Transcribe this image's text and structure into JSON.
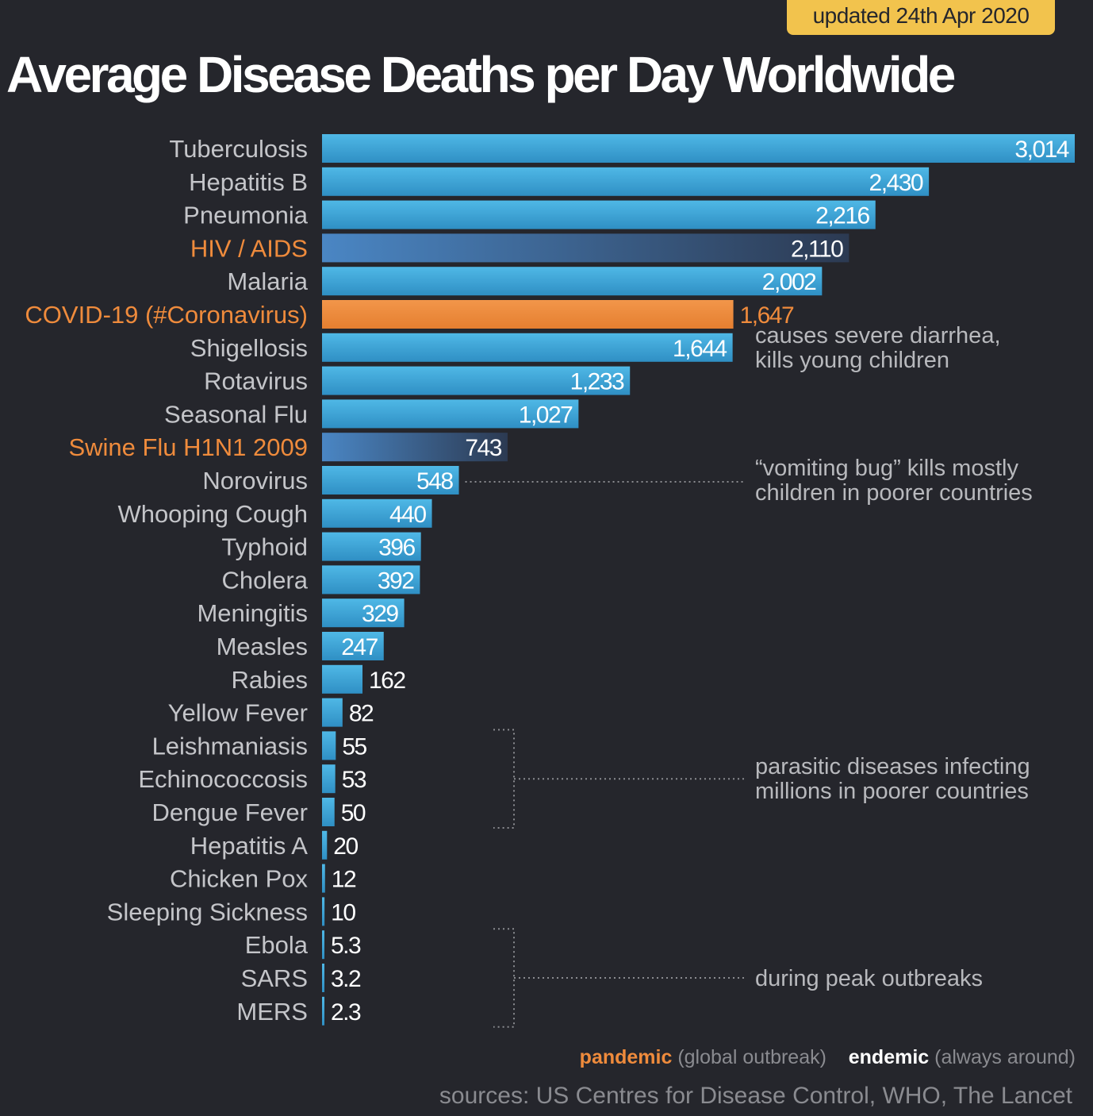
{
  "header": {
    "updated": "updated 24th Apr 2020",
    "title": "Average Disease Deaths per Day Worldwide"
  },
  "chart_data": {
    "type": "bar",
    "orientation": "horizontal",
    "title": "Average Disease Deaths per Day Worldwide",
    "xlabel": "",
    "ylabel": "",
    "xlim": [
      0,
      3014
    ],
    "grid": false,
    "categories": [
      "Tuberculosis",
      "Hepatitis B",
      "Pneumonia",
      "HIV / AIDS",
      "Malaria",
      "COVID-19 (#Coronavirus)",
      "Shigellosis",
      "Rotavirus",
      "Seasonal Flu",
      "Swine Flu H1N1 2009",
      "Norovirus",
      "Whooping Cough",
      "Typhoid",
      "Cholera",
      "Meningitis",
      "Measles",
      "Rabies",
      "Yellow Fever",
      "Leishmaniasis",
      "Echinococcosis",
      "Dengue Fever",
      "Hepatitis A",
      "Chicken Pox",
      "Sleeping Sickness",
      "Ebola",
      "SARS",
      "MERS"
    ],
    "values": [
      3014,
      2430,
      2216,
      2110,
      2002,
      1647,
      1644,
      1233,
      1027,
      743,
      548,
      440,
      396,
      392,
      329,
      247,
      162,
      82,
      55,
      53,
      50,
      20,
      12,
      10,
      5.3,
      3.2,
      2.3
    ],
    "value_labels": [
      "3,014",
      "2,430",
      "2,216",
      "2,110",
      "2,002",
      "1,647",
      "1,644",
      "1,233",
      "1,027",
      "743",
      "548",
      "440",
      "396",
      "392",
      "329",
      "247",
      "162",
      "82",
      "55",
      "53",
      "50",
      "20",
      "12",
      "10",
      "5.3",
      "3.2",
      "2.3"
    ],
    "bar_style": [
      "endemic",
      "endemic",
      "endemic",
      "pandemic-faded",
      "endemic",
      "pandemic-active",
      "endemic",
      "endemic",
      "endemic",
      "pandemic-faded",
      "endemic",
      "endemic",
      "endemic",
      "endemic",
      "endemic",
      "endemic",
      "endemic",
      "endemic",
      "endemic",
      "endemic",
      "endemic",
      "endemic",
      "endemic",
      "endemic",
      "endemic",
      "endemic",
      "endemic"
    ],
    "label_highlight": [
      false,
      false,
      false,
      true,
      false,
      true,
      false,
      false,
      false,
      true,
      false,
      false,
      false,
      false,
      false,
      false,
      false,
      false,
      false,
      false,
      false,
      false,
      false,
      false,
      false,
      false,
      false
    ],
    "annotations": [
      {
        "id": "shigellosis-note",
        "lines": [
          "causes severe diarrhea,",
          "kills young children"
        ],
        "anchor_rows": [
          6
        ]
      },
      {
        "id": "norovirus-note",
        "lines": [
          "“vomiting bug” kills mostly",
          "children in poorer countries"
        ],
        "anchor_rows": [
          10
        ]
      },
      {
        "id": "parasitic-note",
        "lines": [
          "parasitic diseases infecting",
          "millions in poorer countries"
        ],
        "anchor_rows": [
          18,
          20
        ]
      },
      {
        "id": "outbreak-note",
        "lines": [
          "during peak outbreaks"
        ],
        "anchor_rows": [
          24,
          26
        ]
      }
    ],
    "colors": {
      "background": "#25262c",
      "bar_endemic": "#3ea7d8",
      "bar_pandemic": "#ef8b3c",
      "label": "#c4c5c9",
      "label_highlight": "#ef8b3c",
      "annotation": "#b8b9bd"
    }
  },
  "legend": {
    "pandemic": "pandemic",
    "pandemic_desc": "(global outbreak)",
    "endemic": "endemic",
    "endemic_desc": "(always around)"
  },
  "sources": "sources: US Centres for Disease Control, WHO, The Lancet"
}
